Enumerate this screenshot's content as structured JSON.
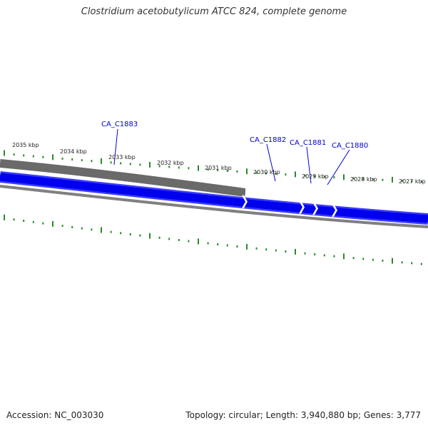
{
  "title": "Clostridium acetobutylicum ATCC 824, complete genome",
  "footer": {
    "accession": "Accession: NC_003030",
    "topology": "Topology: circular; Length: 3,940,880 bp; Genes: 3,777"
  },
  "scale": {
    "tick_labels": [
      "2035 kbp",
      "2034 kbp",
      "2033 kbp",
      "2032 kbp",
      "2031 kbp",
      "2030 kbp",
      "2029 kbp",
      "2028 kbp",
      "2027 kbp"
    ]
  },
  "genes": [
    {
      "name": "CA_C1883",
      "strand": "minus",
      "color": "#6a6a6a"
    },
    {
      "name": "CA_C1882",
      "strand": "plus",
      "color": "#0000ee"
    },
    {
      "name": "CA_C1881",
      "strand": "plus",
      "color": "#0000ee"
    },
    {
      "name": "CA_C1880",
      "strand": "plus",
      "color": "#0000ee"
    }
  ],
  "colors": {
    "tick": "#2a8a2a",
    "plus_strand": "#0000ee",
    "minus_strand": "#6a6a6a",
    "backbone": "#808080",
    "label": "#0000cc"
  }
}
